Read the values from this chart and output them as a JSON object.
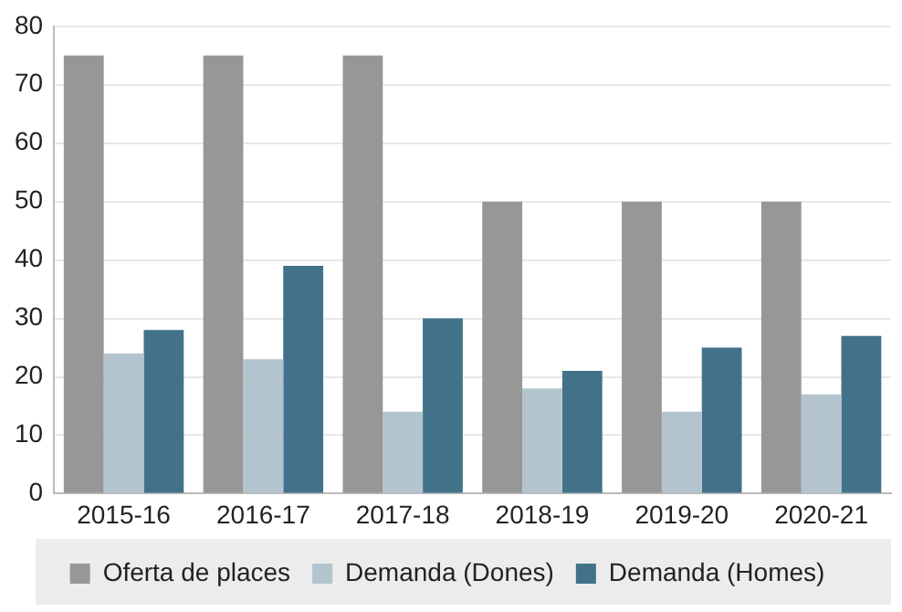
{
  "chart_data": {
    "type": "bar",
    "categories": [
      "2015-16",
      "2016-17",
      "2017-18",
      "2018-19",
      "2019-20",
      "2020-21"
    ],
    "series": [
      {
        "name": "Oferta de places",
        "color": "#979797",
        "values": [
          75,
          75,
          75,
          50,
          50,
          50
        ]
      },
      {
        "name": "Demanda (Dones)",
        "color": "#b4c4ce",
        "values": [
          24,
          23,
          14,
          18,
          14,
          17
        ]
      },
      {
        "name": "Demanda (Homes)",
        "color": "#42728a",
        "values": [
          28,
          39,
          30,
          21,
          25,
          27
        ]
      }
    ],
    "ylim": [
      0,
      80
    ],
    "yticks": [
      0,
      10,
      20,
      30,
      40,
      50,
      60,
      70,
      80
    ],
    "grid": "y",
    "legend": "bottom"
  }
}
